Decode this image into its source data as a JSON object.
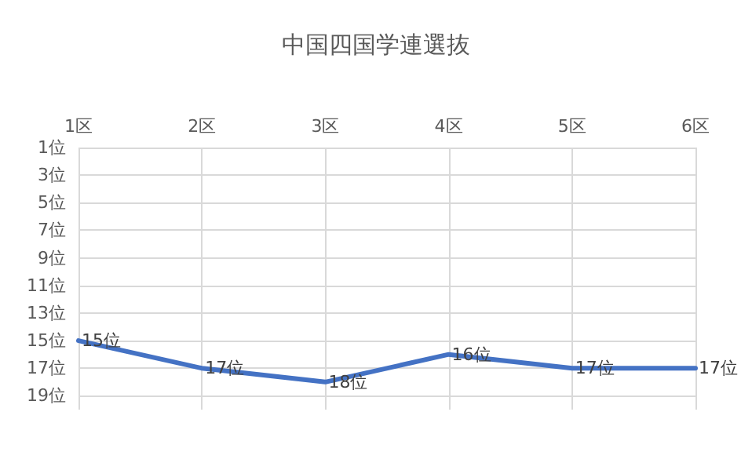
{
  "chart_data": {
    "type": "line",
    "title": "中国四国学連選抜",
    "categories": [
      "1区",
      "2区",
      "3区",
      "4区",
      "5区",
      "6区"
    ],
    "series": [
      {
        "color": "#4472c4",
        "values": [
          15,
          17,
          18,
          16,
          17,
          17
        ],
        "value_labels": [
          "15位",
          "17位",
          "18位",
          "16位",
          "17位",
          "17位"
        ]
      }
    ],
    "ylim": [
      20,
      1
    ],
    "yticks": [
      {
        "value": 1,
        "label": "1位"
      },
      {
        "value": 3,
        "label": "3位"
      },
      {
        "value": 5,
        "label": "5位"
      },
      {
        "value": 7,
        "label": "7位"
      },
      {
        "value": 9,
        "label": "9位"
      },
      {
        "value": 11,
        "label": "11位"
      },
      {
        "value": 13,
        "label": "13位"
      },
      {
        "value": 15,
        "label": "15位"
      },
      {
        "value": 17,
        "label": "17位"
      },
      {
        "value": 19,
        "label": "19位"
      }
    ],
    "grid": true,
    "marker": "none",
    "line_style": "solid"
  }
}
